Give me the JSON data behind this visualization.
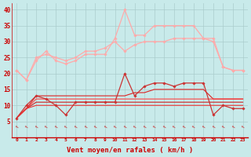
{
  "x": [
    0,
    1,
    2,
    3,
    4,
    5,
    6,
    7,
    8,
    9,
    10,
    11,
    12,
    13,
    14,
    15,
    16,
    17,
    18,
    19,
    20,
    21,
    22,
    23
  ],
  "series": [
    {
      "color": "#ffaaaa",
      "linewidth": 0.9,
      "marker": "D",
      "markersize": 1.8,
      "values": [
        21,
        18,
        25,
        26,
        25,
        24,
        25,
        27,
        27,
        28,
        30,
        27,
        29,
        30,
        30,
        30,
        31,
        31,
        31,
        31,
        30,
        22,
        21,
        21
      ]
    },
    {
      "color": "#ffaaaa",
      "linewidth": 0.9,
      "marker": "D",
      "markersize": 1.8,
      "values": [
        21,
        18,
        24,
        27,
        24,
        23,
        24,
        26,
        26,
        26,
        31,
        40,
        32,
        32,
        35,
        35,
        35,
        35,
        35,
        31,
        31,
        22,
        21,
        21
      ]
    },
    {
      "color": "#cc3333",
      "linewidth": 0.9,
      "marker": "D",
      "markersize": 1.8,
      "values": [
        6,
        10,
        13,
        12,
        10,
        7,
        11,
        11,
        11,
        11,
        11,
        20,
        13,
        16,
        17,
        17,
        16,
        17,
        17,
        17,
        7,
        10,
        9,
        9
      ]
    },
    {
      "color": "#dd2222",
      "linewidth": 0.8,
      "marker": null,
      "markersize": 0,
      "values": [
        6,
        9,
        13,
        13,
        13,
        13,
        13,
        13,
        13,
        13,
        13,
        13,
        14,
        14,
        15,
        15,
        15,
        15,
        15,
        15,
        12,
        12,
        12,
        12
      ]
    },
    {
      "color": "#ff4444",
      "linewidth": 0.8,
      "marker": null,
      "markersize": 0,
      "values": [
        6,
        9,
        12,
        12,
        12,
        12,
        12,
        12,
        12,
        12,
        12,
        12,
        12,
        12,
        12,
        12,
        12,
        12,
        12,
        12,
        12,
        12,
        12,
        12
      ]
    },
    {
      "color": "#cc2222",
      "linewidth": 0.8,
      "marker": null,
      "markersize": 0,
      "values": [
        6,
        9,
        11,
        11,
        11,
        11,
        11,
        11,
        11,
        11,
        11,
        11,
        11,
        11,
        11,
        11,
        11,
        11,
        11,
        11,
        11,
        11,
        11,
        11
      ]
    },
    {
      "color": "#ee3333",
      "linewidth": 0.8,
      "marker": null,
      "markersize": 0,
      "values": [
        6,
        9,
        10,
        10,
        10,
        10,
        10,
        10,
        10,
        10,
        10,
        10,
        10,
        10,
        10,
        10,
        10,
        10,
        10,
        10,
        10,
        10,
        10,
        10
      ]
    }
  ],
  "background_color": "#c8eaea",
  "grid_color": "#aacccc",
  "xlabel": "Vent moyen/en rafales ( km/h )",
  "xlabel_color": "#cc0000",
  "tick_color": "#cc0000",
  "axis_line_color": "#cc0000",
  "arrow_color": "#cc3333",
  "ylim": [
    0,
    42
  ],
  "yticks": [
    5,
    10,
    15,
    20,
    25,
    30,
    35,
    40
  ],
  "xlim": [
    -0.5,
    23.5
  ]
}
